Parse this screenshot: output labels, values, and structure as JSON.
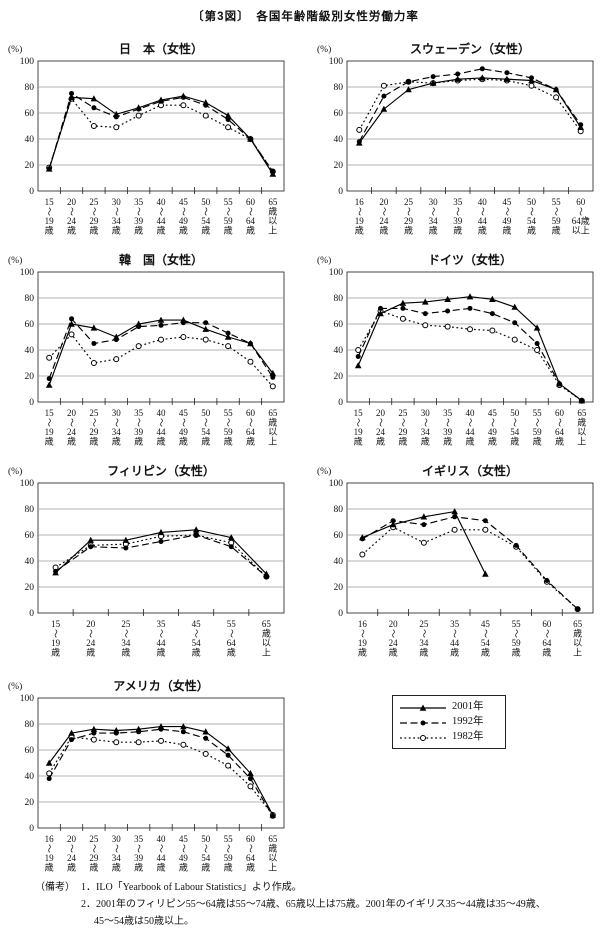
{
  "page": {
    "title": "〔第3図〕　各国年齢階級別女性労働力率"
  },
  "legend": {
    "items": [
      {
        "label": "2001年",
        "style": "solid",
        "marker": "triangle"
      },
      {
        "label": "1992年",
        "style": "dashed",
        "marker": "circle-filled"
      },
      {
        "label": "1982年",
        "style": "dotted",
        "marker": "circle-open"
      }
    ]
  },
  "notes": {
    "heading": "（備考）",
    "line1": "1．ILO「Yearbook of Labour Statistics」より作成。",
    "line2": "2．2001年のフィリピン55～64歳は55～74歳、65歳以上は75歳。2001年のイギリス35～44歳は35～49歳、",
    "line3": "45～54歳は50歳以上。"
  },
  "colors": {
    "line": "#000000",
    "grid": "#9a9a9a",
    "frame": "#333333"
  },
  "chart_data": [
    {
      "id": "japan",
      "type": "line",
      "title": "日　本（女性）",
      "ylabel": "(%)",
      "ylim": [
        0,
        100
      ],
      "yticks": [
        0,
        20,
        40,
        60,
        80,
        100
      ],
      "grid": "horizontal",
      "legend_position": "separate-box",
      "categories": [
        [
          "15",
          "～",
          "19",
          "歳"
        ],
        [
          "20",
          "～",
          "24",
          "歳"
        ],
        [
          "25",
          "～",
          "29",
          "歳"
        ],
        [
          "30",
          "～",
          "34",
          "歳"
        ],
        [
          "35",
          "～",
          "39",
          "歳"
        ],
        [
          "40",
          "～",
          "44",
          "歳"
        ],
        [
          "45",
          "～",
          "49",
          "歳"
        ],
        [
          "50",
          "～",
          "54",
          "歳"
        ],
        [
          "55",
          "～",
          "59",
          "歳"
        ],
        [
          "60",
          "～",
          "64",
          "歳"
        ],
        [
          "65",
          "歳",
          "以",
          "上"
        ]
      ],
      "series": [
        {
          "name": "2001年",
          "style": "solid",
          "marker": "triangle",
          "values": [
            17,
            72,
            71,
            59,
            64,
            70,
            73,
            68,
            58,
            40,
            13
          ]
        },
        {
          "name": "1992年",
          "style": "dashed",
          "marker": "circle-filled",
          "values": [
            17,
            75,
            64,
            57,
            63,
            69,
            72,
            66,
            55,
            40,
            15
          ]
        },
        {
          "name": "1982年",
          "style": "dotted",
          "marker": "circle-open",
          "values": [
            18,
            71,
            50,
            49,
            58,
            66,
            66,
            58,
            49,
            40,
            15
          ]
        }
      ]
    },
    {
      "id": "sweden",
      "type": "line",
      "title": "スウェーデン（女性）",
      "ylabel": "(%)",
      "ylim": [
        0,
        100
      ],
      "yticks": [
        0,
        20,
        40,
        60,
        80,
        100
      ],
      "grid": "horizontal",
      "categories": [
        [
          "16",
          "～",
          "19",
          "歳"
        ],
        [
          "20",
          "～",
          "24",
          "歳"
        ],
        [
          "25",
          "～",
          "29",
          "歳"
        ],
        [
          "30",
          "～",
          "34",
          "歳"
        ],
        [
          "35",
          "～",
          "39",
          "歳"
        ],
        [
          "40",
          "～",
          "44",
          "歳"
        ],
        [
          "45",
          "～",
          "49",
          "歳"
        ],
        [
          "50",
          "～",
          "54",
          "歳"
        ],
        [
          "55",
          "～",
          "59",
          "歳"
        ],
        [
          "60",
          "～",
          "64歳",
          "以上"
        ]
      ],
      "series": [
        {
          "name": "2001年",
          "style": "solid",
          "marker": "triangle",
          "values": [
            37,
            63,
            78,
            83,
            86,
            87,
            86,
            85,
            78,
            49
          ]
        },
        {
          "name": "1992年",
          "style": "dashed",
          "marker": "circle-filled",
          "values": [
            38,
            73,
            84,
            88,
            90,
            94,
            91,
            87,
            78,
            51
          ]
        },
        {
          "name": "1982年",
          "style": "dotted",
          "marker": "circle-open",
          "values": [
            47,
            81,
            84,
            83,
            85,
            86,
            85,
            81,
            72,
            46
          ]
        }
      ]
    },
    {
      "id": "korea",
      "type": "line",
      "title": "韓　国（女性）",
      "ylabel": "(%)",
      "ylim": [
        0,
        100
      ],
      "yticks": [
        0,
        20,
        40,
        60,
        80,
        100
      ],
      "grid": "horizontal",
      "categories": [
        [
          "15",
          "～",
          "19",
          "歳"
        ],
        [
          "20",
          "～",
          "24",
          "歳"
        ],
        [
          "25",
          "～",
          "29",
          "歳"
        ],
        [
          "30",
          "～",
          "34",
          "歳"
        ],
        [
          "35",
          "～",
          "39",
          "歳"
        ],
        [
          "40",
          "～",
          "44",
          "歳"
        ],
        [
          "45",
          "～",
          "49",
          "歳"
        ],
        [
          "50",
          "～",
          "54",
          "歳"
        ],
        [
          "55",
          "～",
          "59",
          "歳"
        ],
        [
          "60",
          "～",
          "64",
          "歳"
        ],
        [
          "65",
          "歳",
          "以",
          "上"
        ]
      ],
      "series": [
        {
          "name": "2001年",
          "style": "solid",
          "marker": "triangle",
          "values": [
            13,
            60,
            57,
            50,
            60,
            63,
            63,
            56,
            50,
            45,
            22
          ]
        },
        {
          "name": "1992年",
          "style": "dashed",
          "marker": "circle-filled",
          "values": [
            18,
            64,
            45,
            48,
            58,
            59,
            61,
            61,
            53,
            45,
            19
          ]
        },
        {
          "name": "1982年",
          "style": "dotted",
          "marker": "circle-open",
          "values": [
            34,
            52,
            30,
            33,
            43,
            48,
            50,
            48,
            43,
            31,
            12
          ]
        }
      ]
    },
    {
      "id": "germany",
      "type": "line",
      "title": "ドイツ（女性）",
      "ylabel": "(%)",
      "ylim": [
        0,
        100
      ],
      "yticks": [
        0,
        20,
        40,
        60,
        80,
        100
      ],
      "grid": "horizontal",
      "categories": [
        [
          "15",
          "～",
          "19",
          "歳"
        ],
        [
          "20",
          "～",
          "24",
          "歳"
        ],
        [
          "25",
          "～",
          "29",
          "歳"
        ],
        [
          "30",
          "～",
          "34",
          "歳"
        ],
        [
          "35",
          "～",
          "39",
          "歳"
        ],
        [
          "40",
          "～",
          "44",
          "歳"
        ],
        [
          "45",
          "～",
          "49",
          "歳"
        ],
        [
          "50",
          "～",
          "54",
          "歳"
        ],
        [
          "55",
          "～",
          "59",
          "歳"
        ],
        [
          "60",
          "～",
          "64",
          "歳"
        ],
        [
          "65",
          "歳",
          "以",
          "上"
        ]
      ],
      "series": [
        {
          "name": "2001年",
          "style": "solid",
          "marker": "triangle",
          "values": [
            28,
            68,
            76,
            77,
            79,
            81,
            79,
            73,
            57,
            14,
            1
          ]
        },
        {
          "name": "1992年",
          "style": "dashed",
          "marker": "circle-filled",
          "values": [
            35,
            72,
            72,
            68,
            70,
            72,
            68,
            61,
            45,
            14,
            1
          ]
        },
        {
          "name": "1982年",
          "style": "dotted",
          "marker": "circle-open",
          "values": [
            40,
            70,
            64,
            59,
            58,
            56,
            55,
            48,
            40,
            13,
            1
          ]
        }
      ]
    },
    {
      "id": "philippines",
      "type": "line",
      "title": "フィリピン（女性）",
      "ylabel": "(%)",
      "ylim": [
        0,
        100
      ],
      "yticks": [
        0,
        20,
        40,
        60,
        80,
        100
      ],
      "grid": "horizontal",
      "categories": [
        [
          "15",
          "～",
          "19",
          "歳"
        ],
        [
          "20",
          "～",
          "24",
          "歳"
        ],
        [
          "25",
          "～",
          "34",
          "歳"
        ],
        [
          "35",
          "～",
          "44",
          "歳"
        ],
        [
          "45",
          "～",
          "54",
          "歳"
        ],
        [
          "55",
          "～",
          "64",
          "歳"
        ],
        [
          "65",
          "歳",
          "以",
          "上"
        ]
      ],
      "series": [
        {
          "name": "2001年",
          "style": "solid",
          "marker": "triangle",
          "values": [
            31,
            56,
            56,
            62,
            64,
            58,
            30
          ]
        },
        {
          "name": "1992年",
          "style": "dashed",
          "marker": "circle-filled",
          "values": [
            32,
            51,
            50,
            55,
            60,
            51,
            28
          ]
        },
        {
          "name": "1982年",
          "style": "dotted",
          "marker": "circle-open",
          "values": [
            35,
            52,
            53,
            59,
            60,
            54,
            28
          ]
        }
      ]
    },
    {
      "id": "uk",
      "type": "line",
      "title": "イギリス（女性）",
      "ylabel": "(%)",
      "ylim": [
        0,
        100
      ],
      "yticks": [
        0,
        20,
        40,
        60,
        80,
        100
      ],
      "grid": "horizontal",
      "categories": [
        [
          "16",
          "～",
          "19",
          "歳"
        ],
        [
          "20",
          "～",
          "24",
          "歳"
        ],
        [
          "25",
          "～",
          "34",
          "歳"
        ],
        [
          "35",
          "～",
          "44",
          "歳"
        ],
        [
          "45",
          "～",
          "54",
          "歳"
        ],
        [
          "55",
          "～",
          "59",
          "歳"
        ],
        [
          "60",
          "～",
          "64",
          "歳"
        ],
        [
          "65",
          "歳",
          "以",
          "上"
        ]
      ],
      "series": [
        {
          "name": "2001年",
          "style": "solid",
          "marker": "triangle",
          "values": [
            58,
            68,
            74,
            78,
            30,
            null,
            null,
            null
          ]
        },
        {
          "name": "1992年",
          "style": "dashed",
          "marker": "circle-filled",
          "values": [
            57,
            71,
            68,
            74,
            71,
            52,
            25,
            3
          ]
        },
        {
          "name": "1982年",
          "style": "dotted",
          "marker": "circle-open",
          "values": [
            45,
            66,
            54,
            64,
            64,
            51,
            24,
            3
          ]
        }
      ]
    },
    {
      "id": "usa",
      "type": "line",
      "title": "アメリカ（女性）",
      "ylabel": "(%)",
      "ylim": [
        0,
        100
      ],
      "yticks": [
        0,
        20,
        40,
        60,
        80,
        100
      ],
      "grid": "horizontal",
      "categories": [
        [
          "16",
          "～",
          "19",
          "歳"
        ],
        [
          "20",
          "～",
          "24",
          "歳"
        ],
        [
          "25",
          "～",
          "29",
          "歳"
        ],
        [
          "30",
          "～",
          "34",
          "歳"
        ],
        [
          "35",
          "～",
          "39",
          "歳"
        ],
        [
          "40",
          "～",
          "44",
          "歳"
        ],
        [
          "45",
          "～",
          "49",
          "歳"
        ],
        [
          "50",
          "～",
          "54",
          "歳"
        ],
        [
          "55",
          "～",
          "59",
          "歳"
        ],
        [
          "60",
          "～",
          "64",
          "歳"
        ],
        [
          "65",
          "歳",
          "以",
          "上"
        ]
      ],
      "series": [
        {
          "name": "2001年",
          "style": "solid",
          "marker": "triangle",
          "values": [
            50,
            73,
            76,
            75,
            76,
            78,
            78,
            74,
            61,
            42,
            10
          ]
        },
        {
          "name": "1992年",
          "style": "dashed",
          "marker": "circle-filled",
          "values": [
            38,
            68,
            73,
            73,
            74,
            76,
            74,
            69,
            56,
            38,
            9
          ]
        },
        {
          "name": "1982年",
          "style": "dotted",
          "marker": "circle-open",
          "values": [
            42,
            70,
            68,
            66,
            66,
            67,
            64,
            57,
            48,
            32,
            10
          ]
        }
      ]
    }
  ]
}
